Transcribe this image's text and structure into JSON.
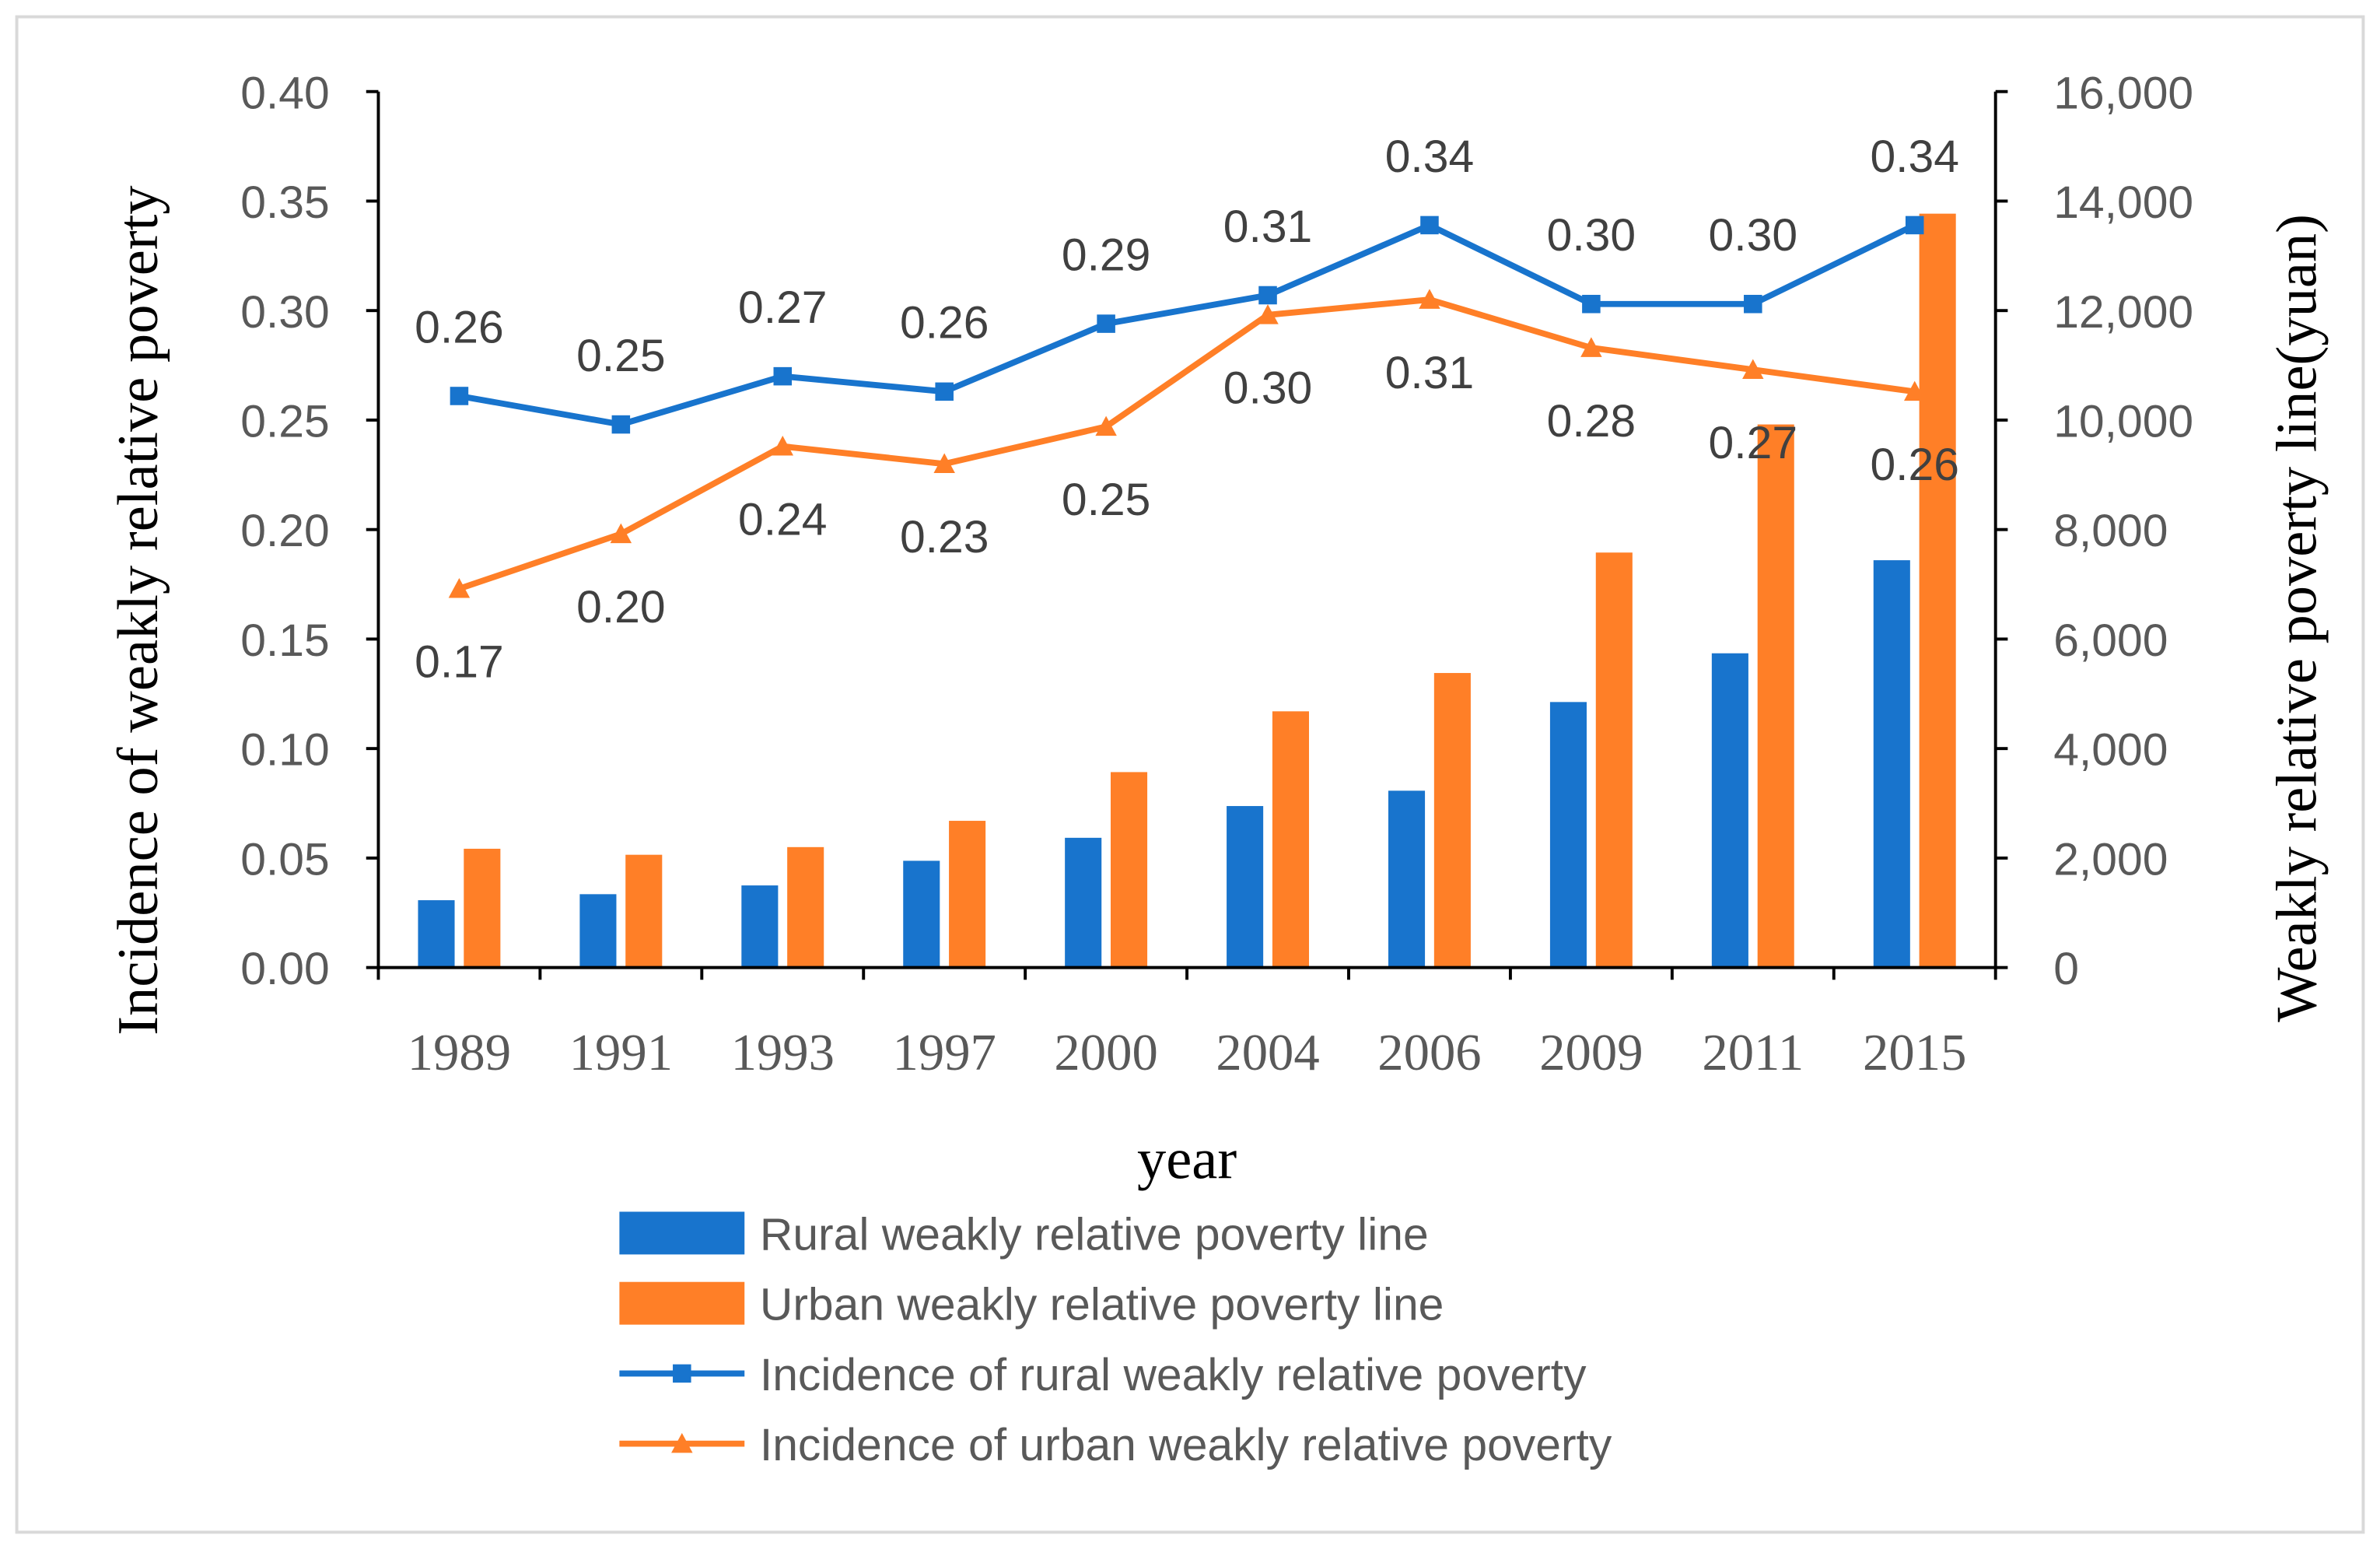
{
  "chart_data": {
    "type": "bar+line",
    "categories": [
      "1989",
      "1991",
      "1993",
      "1997",
      "2000",
      "2004",
      "2006",
      "2009",
      "2011",
      "2015"
    ],
    "xlabel": "year",
    "ylabel_left": "Incidence of  weakly relative poverty",
    "ylabel_right": "Weakly relative poverty line(yuan)",
    "ylim_left": [
      0,
      0.4
    ],
    "ylim_right": [
      0,
      16000
    ],
    "left_ticks": [
      "0.00",
      "0.05",
      "0.10",
      "0.15",
      "0.20",
      "0.25",
      "0.30",
      "0.35",
      "0.40"
    ],
    "right_ticks": [
      "0",
      "2,000",
      "4,000",
      "6,000",
      "8,000",
      "10,000",
      "12,000",
      "14,000",
      "16,000"
    ],
    "grid": false,
    "legend_position": "bottom",
    "colors": {
      "rural": "#1874CD",
      "urban": "#FF7F27"
    },
    "bar_series": [
      {
        "name": "Rural weakly relative poverty line",
        "axis": "right",
        "values": [
          1230,
          1340,
          1500,
          1950,
          2370,
          2950,
          3230,
          4850,
          5740,
          7440
        ]
      },
      {
        "name": "Urban weakly relative poverty line",
        "axis": "right",
        "values": [
          2170,
          2060,
          2200,
          2680,
          3570,
          4680,
          5380,
          7580,
          9920,
          13770
        ]
      }
    ],
    "line_series": [
      {
        "name": "Incidence of rural weakly relative poverty",
        "axis": "left",
        "marker": "square",
        "values": [
          0.261,
          0.248,
          0.27,
          0.263,
          0.294,
          0.307,
          0.339,
          0.303,
          0.303,
          0.339
        ],
        "labels": [
          "0.26",
          "0.25",
          "0.27",
          "0.26",
          "0.29",
          "0.31",
          "0.34",
          "0.30",
          "0.30",
          "0.34"
        ]
      },
      {
        "name": "Incidence of urban weakly relative poverty",
        "axis": "left",
        "marker": "triangle",
        "values": [
          0.173,
          0.198,
          0.238,
          0.23,
          0.247,
          0.298,
          0.305,
          0.283,
          0.273,
          0.263
        ],
        "labels": [
          "0.17",
          "0.20",
          "0.24",
          "0.23",
          "0.25",
          "0.30",
          "0.31",
          "0.28",
          "0.27",
          "0.26"
        ]
      }
    ]
  }
}
